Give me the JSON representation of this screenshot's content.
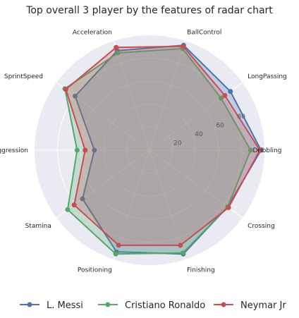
{
  "chart_data": {
    "type": "radar",
    "title": "Top overall 3 player by the features of radar chart",
    "axes": [
      "Dribbling",
      "LongPassing",
      "BallControl",
      "Acceleration",
      "SprintSpeed",
      "Aggression",
      "Stamina",
      "Positioning",
      "Finishing",
      "Crossing"
    ],
    "r_ticks": [
      20,
      40,
      60,
      80
    ],
    "r_tick_labels": [
      "20",
      "40",
      "60",
      "80"
    ],
    "rlim": [
      0,
      100
    ],
    "grid": true,
    "legend_position": "bottom",
    "series": [
      {
        "name": "L. Messi",
        "color": "#4c72b0",
        "values": {
          "Dribbling": 97,
          "LongPassing": 87,
          "BallControl": 96,
          "Acceleration": 91,
          "SprintSpeed": 80,
          "Aggression": 48,
          "Stamina": 72,
          "Positioning": 93,
          "Finishing": 95,
          "Crossing": 84
        }
      },
      {
        "name": "Cristiano Ronaldo",
        "color": "#55a868",
        "values": {
          "Dribbling": 88,
          "LongPassing": 77,
          "BallControl": 93,
          "Acceleration": 89,
          "SprintSpeed": 91,
          "Aggression": 63,
          "Stamina": 88,
          "Positioning": 95,
          "Finishing": 94,
          "Crossing": 84
        }
      },
      {
        "name": "Neymar Jr",
        "color": "#c44e52",
        "values": {
          "Dribbling": 96,
          "LongPassing": 81,
          "BallControl": 95,
          "Acceleration": 94,
          "SprintSpeed": 90,
          "Aggression": 56,
          "Stamina": 81,
          "Positioning": 87,
          "Finishing": 87,
          "Crossing": 85
        }
      }
    ]
  }
}
